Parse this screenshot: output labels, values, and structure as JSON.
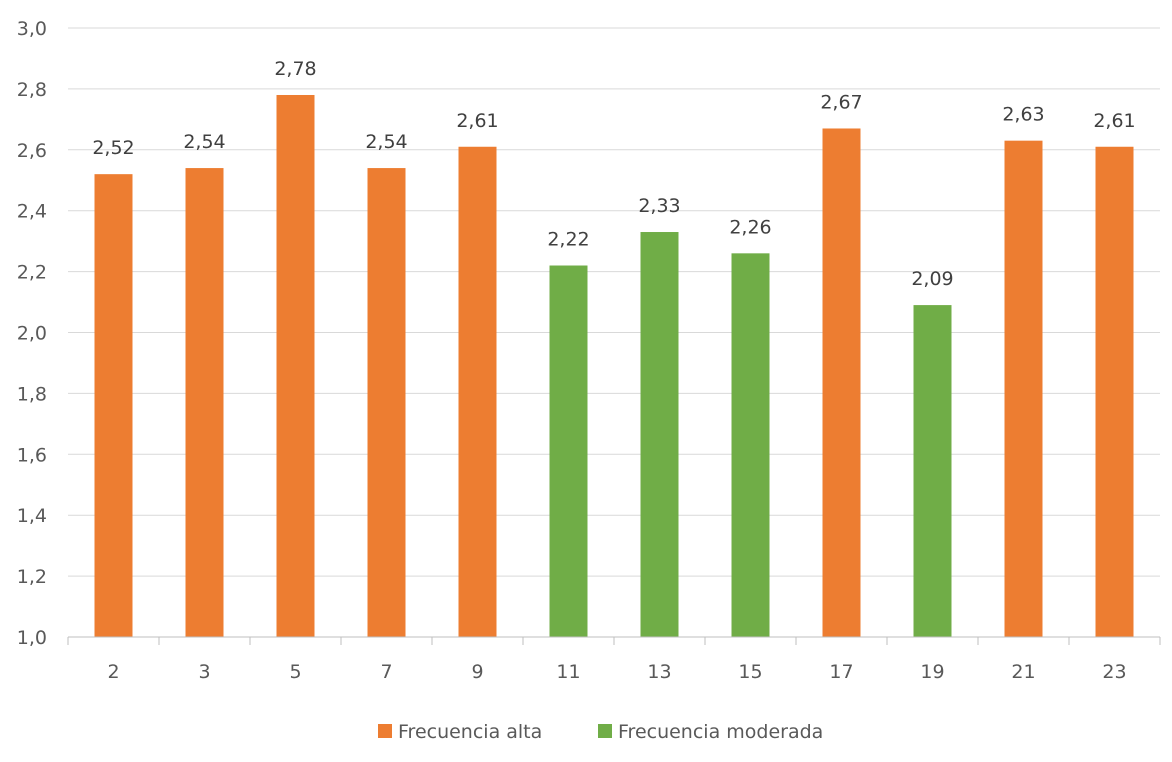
{
  "chart_data": {
    "type": "bar",
    "title": "",
    "xlabel": "",
    "ylabel": "",
    "ylim": [
      1.0,
      3.0
    ],
    "y_ticks": [
      "1,0",
      "1,2",
      "1,4",
      "1,6",
      "1,8",
      "2,0",
      "2,2",
      "2,4",
      "2,6",
      "2,8",
      "3,0"
    ],
    "grid": true,
    "legend_position": "bottom",
    "categories": [
      "2",
      "3",
      "5",
      "7",
      "9",
      "11",
      "13",
      "15",
      "17",
      "19",
      "21",
      "23"
    ],
    "values": [
      2.52,
      2.54,
      2.78,
      2.54,
      2.61,
      2.22,
      2.33,
      2.26,
      2.67,
      2.09,
      2.63,
      2.61
    ],
    "data_labels": [
      "2,52",
      "2,54",
      "2,78",
      "2,54",
      "2,61",
      "2,22",
      "2,33",
      "2,26",
      "2,67",
      "2,09",
      "2,63",
      "2,61"
    ],
    "bar_series": [
      "alta",
      "alta",
      "alta",
      "alta",
      "alta",
      "moderada",
      "moderada",
      "moderada",
      "alta",
      "moderada",
      "alta",
      "alta"
    ],
    "series": [
      {
        "key": "alta",
        "name": "Frecuencia alta",
        "color": "#ED7D31"
      },
      {
        "key": "moderada",
        "name": "Frecuencia moderada",
        "color": "#70AD47"
      }
    ]
  }
}
